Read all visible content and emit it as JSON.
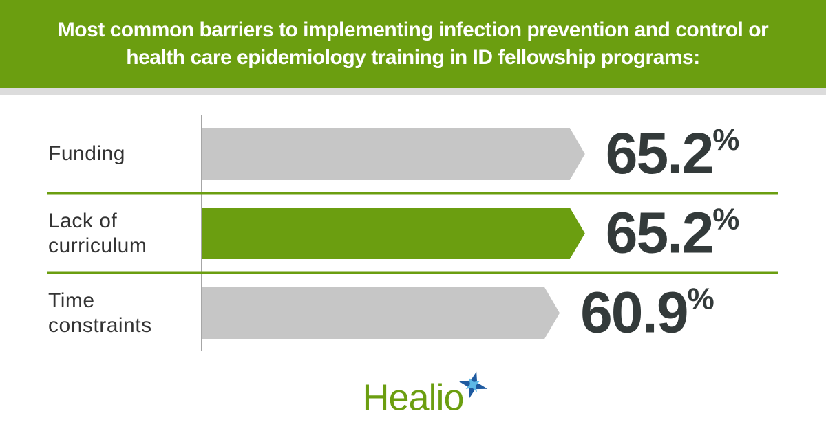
{
  "chart_data": {
    "type": "bar",
    "orientation": "horizontal",
    "title": "Most common barriers to implementing infection prevention and control or health care epidemiology training in ID fellowship programs:",
    "categories": [
      "Funding",
      "Lack of curriculum",
      "Time constraints"
    ],
    "values": [
      65.2,
      65.2,
      60.9
    ],
    "value_labels": [
      "65.2%",
      "65.2%",
      "60.9%"
    ],
    "colors": [
      "#c6c6c6",
      "#6b9e10",
      "#c6c6c6"
    ]
  },
  "logo": "Healio"
}
